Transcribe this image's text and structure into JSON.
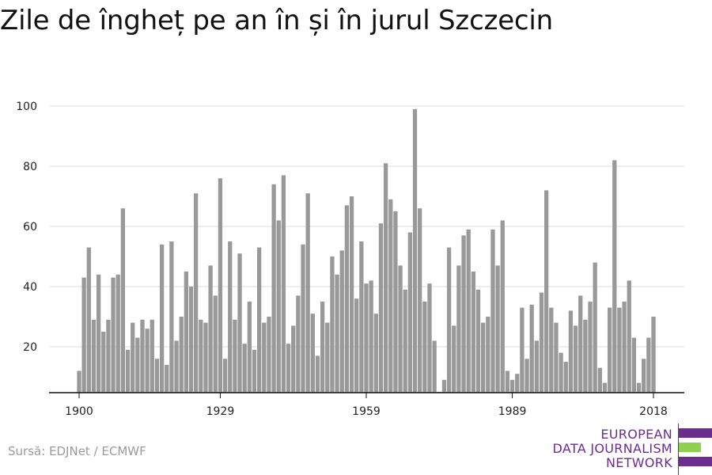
{
  "title": "Zile de îngheț pe an în și în jurul Szczecin",
  "source": "Sursă: EDJNet / ECMWF",
  "logo": {
    "line1": "EUROPEAN",
    "line2": "DATA JOURNALISM",
    "line3": "NETWORK",
    "colors": {
      "purple": "#6b2d8e",
      "green": "#8fd14f"
    }
  },
  "colors": {
    "bar": "#999999",
    "grid": "#dddddd",
    "axis": "#111111"
  },
  "chart_data": {
    "type": "bar",
    "title": "Zile de îngheț pe an în și în jurul Szczecin",
    "xlabel": "",
    "ylabel": "",
    "x_start": 1900,
    "x_end": 2018,
    "x_ticks": [
      1900,
      1929,
      1959,
      1989,
      2018
    ],
    "y_ticks": [
      20,
      40,
      60,
      80,
      100
    ],
    "ylim": [
      5,
      100
    ],
    "grid": true,
    "values": [
      12,
      43,
      53,
      29,
      44,
      25,
      29,
      43,
      44,
      66,
      19,
      28,
      23,
      29,
      26,
      29,
      16,
      54,
      14,
      55,
      22,
      30,
      45,
      40,
      71,
      29,
      28,
      47,
      37,
      76,
      16,
      55,
      29,
      51,
      21,
      35,
      19,
      53,
      28,
      30,
      74,
      62,
      77,
      21,
      27,
      37,
      54,
      71,
      31,
      17,
      35,
      28,
      50,
      44,
      52,
      67,
      70,
      36,
      55,
      41,
      42,
      31,
      61,
      81,
      69,
      65,
      47,
      39,
      58,
      99,
      66,
      35,
      41,
      22,
      5,
      9,
      53,
      27,
      47,
      57,
      59,
      45,
      39,
      28,
      30,
      59,
      47,
      62,
      12,
      9,
      11,
      33,
      16,
      34,
      22,
      38,
      72,
      33,
      28,
      18,
      15,
      32,
      27,
      37,
      29,
      35,
      48,
      13,
      8,
      33,
      82,
      33,
      35,
      42,
      23,
      8,
      16,
      23,
      30
    ]
  }
}
